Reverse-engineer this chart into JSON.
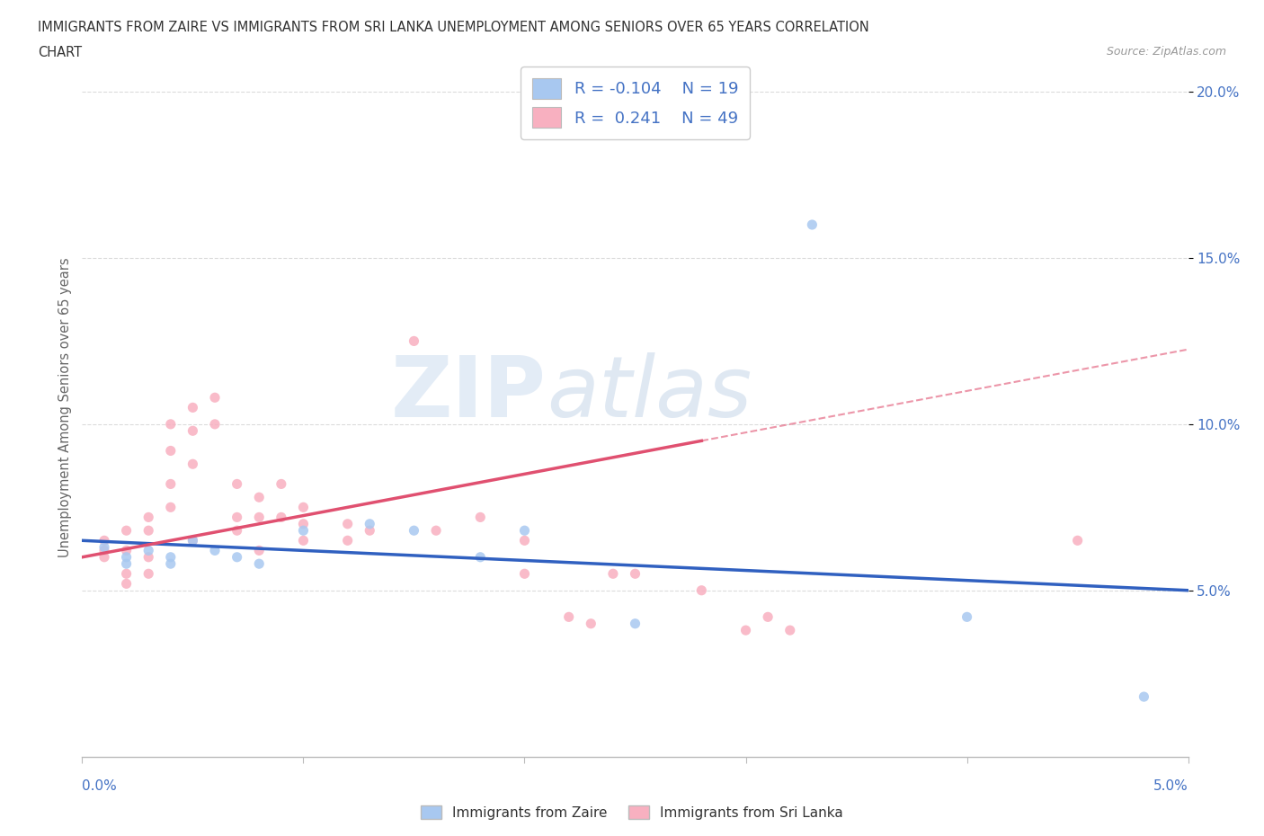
{
  "title_line1": "IMMIGRANTS FROM ZAIRE VS IMMIGRANTS FROM SRI LANKA UNEMPLOYMENT AMONG SENIORS OVER 65 YEARS CORRELATION",
  "title_line2": "CHART",
  "source_text": "Source: ZipAtlas.com",
  "ylabel": "Unemployment Among Seniors over 65 years",
  "xlim": [
    0.0,
    0.05
  ],
  "ylim": [
    0.0,
    0.21
  ],
  "yticks": [
    0.05,
    0.1,
    0.15,
    0.2
  ],
  "ytick_labels": [
    "5.0%",
    "10.0%",
    "15.0%",
    "20.0%"
  ],
  "watermark": "ZIPatlas",
  "legend_r_zaire": "-0.104",
  "legend_n_zaire": "19",
  "legend_r_srilanka": "0.241",
  "legend_n_srilanka": "49",
  "zaire_color": "#a8c8f0",
  "srilanka_color": "#f8b0c0",
  "zaire_line_color": "#3060c0",
  "srilanka_line_color": "#e05070",
  "zaire_scatter": [
    [
      0.001,
      0.063
    ],
    [
      0.002,
      0.06
    ],
    [
      0.002,
      0.058
    ],
    [
      0.003,
      0.062
    ],
    [
      0.004,
      0.06
    ],
    [
      0.004,
      0.058
    ],
    [
      0.005,
      0.065
    ],
    [
      0.006,
      0.062
    ],
    [
      0.007,
      0.06
    ],
    [
      0.008,
      0.058
    ],
    [
      0.01,
      0.068
    ],
    [
      0.013,
      0.07
    ],
    [
      0.015,
      0.068
    ],
    [
      0.018,
      0.06
    ],
    [
      0.02,
      0.068
    ],
    [
      0.025,
      0.04
    ],
    [
      0.033,
      0.16
    ],
    [
      0.04,
      0.042
    ],
    [
      0.048,
      0.018
    ]
  ],
  "srilanka_scatter": [
    [
      0.001,
      0.065
    ],
    [
      0.001,
      0.062
    ],
    [
      0.001,
      0.06
    ],
    [
      0.002,
      0.068
    ],
    [
      0.002,
      0.062
    ],
    [
      0.002,
      0.055
    ],
    [
      0.002,
      0.052
    ],
    [
      0.003,
      0.072
    ],
    [
      0.003,
      0.068
    ],
    [
      0.003,
      0.06
    ],
    [
      0.003,
      0.055
    ],
    [
      0.004,
      0.1
    ],
    [
      0.004,
      0.092
    ],
    [
      0.004,
      0.082
    ],
    [
      0.004,
      0.075
    ],
    [
      0.005,
      0.105
    ],
    [
      0.005,
      0.098
    ],
    [
      0.005,
      0.088
    ],
    [
      0.005,
      0.065
    ],
    [
      0.006,
      0.108
    ],
    [
      0.006,
      0.1
    ],
    [
      0.007,
      0.082
    ],
    [
      0.007,
      0.072
    ],
    [
      0.007,
      0.068
    ],
    [
      0.008,
      0.078
    ],
    [
      0.008,
      0.072
    ],
    [
      0.008,
      0.062
    ],
    [
      0.009,
      0.082
    ],
    [
      0.009,
      0.072
    ],
    [
      0.01,
      0.075
    ],
    [
      0.01,
      0.07
    ],
    [
      0.01,
      0.065
    ],
    [
      0.012,
      0.07
    ],
    [
      0.012,
      0.065
    ],
    [
      0.013,
      0.068
    ],
    [
      0.015,
      0.125
    ],
    [
      0.016,
      0.068
    ],
    [
      0.018,
      0.072
    ],
    [
      0.02,
      0.065
    ],
    [
      0.02,
      0.055
    ],
    [
      0.022,
      0.042
    ],
    [
      0.023,
      0.04
    ],
    [
      0.024,
      0.055
    ],
    [
      0.025,
      0.055
    ],
    [
      0.028,
      0.05
    ],
    [
      0.03,
      0.038
    ],
    [
      0.031,
      0.042
    ],
    [
      0.032,
      0.038
    ],
    [
      0.045,
      0.065
    ]
  ],
  "background_color": "#ffffff",
  "grid_color": "#cccccc",
  "title_color": "#333333",
  "axis_label_color": "#666666",
  "tick_label_color": "#4472c4"
}
